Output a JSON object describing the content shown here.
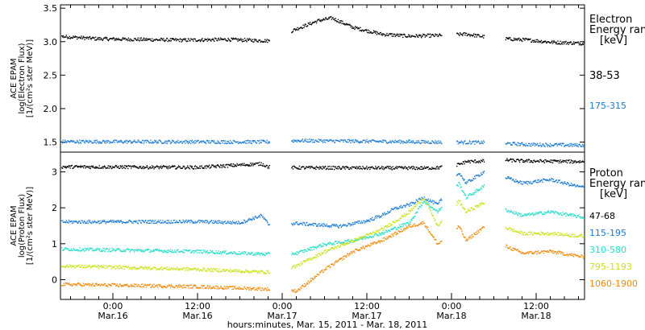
{
  "chart_data": [
    {
      "type": "scatter",
      "ylabel_lines": [
        "ACE EPAM",
        "log(Electron Flux)",
        "[1/(cm²s ster MeV)]"
      ],
      "ylim": [
        1.35,
        3.55
      ],
      "yticks": [
        1.5,
        2.0,
        2.5,
        3.0,
        3.5
      ],
      "ytick_labels": [
        "1.5",
        "2.0",
        "2.5",
        "3.0",
        "3.5"
      ],
      "legend_title": [
        "Electron",
        "Energy ranges",
        "[keV]"
      ],
      "series": [
        {
          "name": "38-53",
          "color": "#000000",
          "segments": [
            [
              -30,
              34,
              3.05
            ],
            [
              38,
              54,
              3.12
            ],
            [
              54,
              58,
              3.03
            ],
            [
              62,
              64,
              3.01
            ],
            [
              66,
              78,
              2.99
            ]
          ],
          "values": [
            [
              -30,
              3.05
            ],
            [
              -24,
              3.07
            ],
            [
              -18,
              3.09
            ],
            [
              -12,
              3.08
            ],
            [
              -6,
              3.11
            ],
            [
              -1,
              3.12
            ],
            [
              4,
              3.09
            ],
            [
              10,
              3.05
            ],
            [
              16,
              3.04
            ],
            [
              22,
              3.03
            ],
            [
              28,
              3.04
            ],
            [
              34,
              3.02
            ],
            [
              38,
              3.2
            ],
            [
              41,
              3.32
            ],
            [
              43,
              3.36
            ],
            [
              46,
              3.22
            ],
            [
              50,
              3.12
            ],
            [
              54,
              3.09
            ],
            [
              58,
              3.1
            ],
            [
              62,
              3.12
            ],
            [
              66,
              3.06
            ],
            [
              71,
              3.03
            ],
            [
              72,
              3.02
            ],
            [
              74,
              3.0
            ],
            [
              79,
              2.98
            ],
            [
              83,
              3.02
            ],
            [
              87,
              3.02
            ],
            [
              90,
              2.98
            ],
            [
              93,
              2.96
            ]
          ]
        },
        {
          "name": "175-315",
          "color": "#1a7ad1",
          "segments": [
            [
              -30,
              34,
              1.52
            ],
            [
              38,
              65,
              1.51
            ],
            [
              71,
              74,
              1.47
            ],
            [
              79,
              94,
              1.48
            ]
          ],
          "values": [
            [
              -30,
              1.52
            ],
            [
              34,
              1.51
            ],
            [
              38,
              1.53
            ],
            [
              65,
              1.5
            ],
            [
              71,
              1.47
            ],
            [
              79,
              1.46
            ],
            [
              94,
              1.5
            ]
          ]
        }
      ]
    },
    {
      "type": "scatter",
      "ylabel_lines": [
        "ACE EPAM",
        "log(Proton Flux)",
        "[1/(cm²s ster MeV)]"
      ],
      "ylim": [
        -0.55,
        3.55
      ],
      "yticks": [
        0,
        1,
        2,
        3
      ],
      "ytick_labels": [
        "0",
        "1",
        "2",
        "3"
      ],
      "legend_title": [
        "Proton",
        "Energy ranges",
        "[keV]"
      ],
      "x_tick_labels": [
        {
          "hour": 12,
          "time": "0:00",
          "date": "Mar.16"
        },
        {
          "hour": 24,
          "time": "12:00",
          "date": "Mar.16"
        },
        {
          "hour": 36,
          "time": "0:00",
          "date": "Mar.17"
        },
        {
          "hour": 48,
          "time": "12:00",
          "date": "Mar.17"
        },
        {
          "hour": 60,
          "time": "0:00",
          "date": "Mar.18"
        },
        {
          "hour": 72,
          "time": "12:00",
          "date": "Mar.18"
        }
      ],
      "xlim_hours": [
        0,
        84
      ],
      "xlabel": "hours:minutes, Mar. 15, 2011 - Mar. 18, 2011",
      "series": [
        {
          "name": "47-68",
          "color": "#000000",
          "values": [
            [
              -30,
              3.15
            ],
            [
              0,
              3.16
            ],
            [
              24,
              3.14
            ],
            [
              33,
              3.24
            ],
            [
              34,
              3.15
            ],
            [
              38,
              3.13
            ],
            [
              56,
              3.12
            ],
            [
              58,
              3.13
            ],
            [
              61,
              3.22
            ],
            [
              62,
              3.3
            ],
            [
              66,
              3.32
            ],
            [
              67,
              3.35
            ],
            [
              70,
              3.32
            ],
            [
              78,
              3.3
            ],
            [
              90,
              3.25
            ],
            [
              94,
              3.22
            ]
          ]
        },
        {
          "name": "115-195",
          "color": "#1a7ad1",
          "values": [
            [
              -30,
              1.6
            ],
            [
              0,
              1.62
            ],
            [
              24,
              1.63
            ],
            [
              30,
              1.6
            ],
            [
              33,
              1.8
            ],
            [
              34,
              1.55
            ],
            [
              38,
              1.58
            ],
            [
              44,
              1.5
            ],
            [
              48,
              1.65
            ],
            [
              50,
              1.8
            ],
            [
              52,
              2.0
            ],
            [
              54,
              2.1
            ],
            [
              56,
              2.3
            ],
            [
              58,
              2.1
            ],
            [
              61,
              3.0
            ],
            [
              62,
              2.7
            ],
            [
              66,
              3.2
            ],
            [
              67,
              2.9
            ],
            [
              70,
              2.7
            ],
            [
              74,
              2.8
            ],
            [
              78,
              2.6
            ],
            [
              90,
              2.4
            ],
            [
              94,
              2.3
            ]
          ]
        },
        {
          "name": "310-580",
          "color": "#22dbc8",
          "values": [
            [
              -30,
              0.93
            ],
            [
              0,
              0.88
            ],
            [
              24,
              0.8
            ],
            [
              34,
              0.72
            ],
            [
              38,
              0.75
            ],
            [
              42,
              1.0
            ],
            [
              46,
              1.1
            ],
            [
              50,
              1.3
            ],
            [
              54,
              1.6
            ],
            [
              56,
              2.2
            ],
            [
              58,
              1.9
            ],
            [
              61,
              2.7
            ],
            [
              62,
              2.3
            ],
            [
              66,
              2.8
            ],
            [
              67,
              2.0
            ],
            [
              70,
              1.8
            ],
            [
              74,
              1.9
            ],
            [
              80,
              1.7
            ],
            [
              90,
              1.6
            ],
            [
              94,
              1.5
            ]
          ]
        },
        {
          "name": "795-1193",
          "color": "#c8e21a",
          "values": [
            [
              -30,
              0.47
            ],
            [
              0,
              0.42
            ],
            [
              24,
              0.3
            ],
            [
              34,
              0.22
            ],
            [
              38,
              0.4
            ],
            [
              42,
              0.8
            ],
            [
              46,
              1.1
            ],
            [
              50,
              1.4
            ],
            [
              54,
              1.9
            ],
            [
              56,
              2.3
            ],
            [
              58,
              1.5
            ],
            [
              61,
              2.2
            ],
            [
              62,
              1.9
            ],
            [
              66,
              2.3
            ],
            [
              67,
              1.5
            ],
            [
              70,
              1.3
            ],
            [
              74,
              1.3
            ],
            [
              80,
              1.2
            ],
            [
              90,
              1.05
            ],
            [
              94,
              1.0
            ]
          ]
        },
        {
          "name": "1060-1900",
          "color": "#f08a0a",
          "values": [
            [
              -30,
              -0.05
            ],
            [
              0,
              -0.1
            ],
            [
              24,
              -0.18
            ],
            [
              34,
              -0.25
            ],
            [
              38,
              -0.3
            ],
            [
              40,
              0.0
            ],
            [
              42,
              0.3
            ],
            [
              46,
              0.8
            ],
            [
              50,
              1.1
            ],
            [
              54,
              1.5
            ],
            [
              56,
              1.6
            ],
            [
              58,
              1.0
            ],
            [
              61,
              1.5
            ],
            [
              62,
              1.1
            ],
            [
              66,
              1.7
            ],
            [
              67,
              1.0
            ],
            [
              70,
              0.75
            ],
            [
              74,
              0.8
            ],
            [
              80,
              0.6
            ],
            [
              90,
              0.5
            ],
            [
              94,
              0.5
            ]
          ]
        }
      ]
    }
  ]
}
